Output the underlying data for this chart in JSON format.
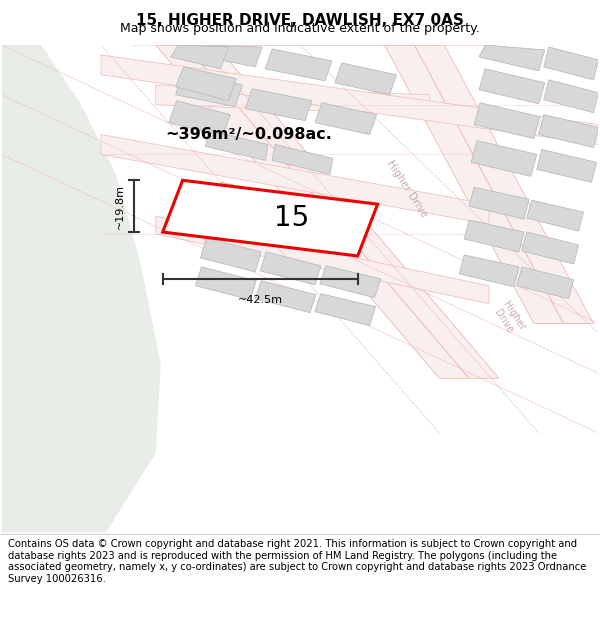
{
  "title": "15, HIGHER DRIVE, DAWLISH, EX7 0AS",
  "subtitle": "Map shows position and indicative extent of the property.",
  "footer": "Contains OS data © Crown copyright and database right 2021. This information is subject to Crown copyright and database rights 2023 and is reproduced with the permission of HM Land Registry. The polygons (including the associated geometry, namely x, y co-ordinates) are subject to Crown copyright and database rights 2023 Ordnance Survey 100026316.",
  "area_text": "~396m²/~0.098ac.",
  "property_number": "15",
  "width_label": "~42.5m",
  "height_label": "~19.8m",
  "map_bg": "#f7f7f7",
  "green_area": "#e8ede8",
  "road_color": "#f0b8b8",
  "road_fill": "#f9efef",
  "building_color": "#d8d8d8",
  "building_edge": "#bbbbbb",
  "plot_outline_color": "#ee0000",
  "road_text_color": "#c8aaaa",
  "dim_line_color": "#333333",
  "title_fontsize": 11,
  "subtitle_fontsize": 9,
  "footer_fontsize": 7.2,
  "map_border_color": "#cccccc"
}
